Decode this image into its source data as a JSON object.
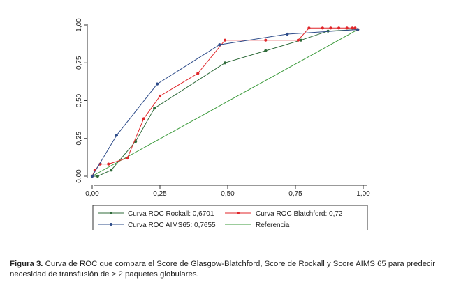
{
  "caption": {
    "label": "Figura 3.",
    "text": " Curva de ROC que compara el Score de Glasgow-Blatchford, Score de Rockall y Score AIMS 65 para predecir necesidad de transfusión de > 2 paquetes globulares."
  },
  "chart_data": {
    "type": "line",
    "xlim": [
      0,
      1
    ],
    "ylim": [
      0,
      1
    ],
    "x_ticks": [
      "0,00",
      "0,25",
      "0,50",
      "0,75",
      "1,00"
    ],
    "y_ticks": [
      "0,00",
      "0,25",
      "0,50",
      "0,75",
      "1,00"
    ],
    "grid": false,
    "legend_position": "bottom",
    "series": [
      {
        "name": "Curva ROC Rockall: 0,6701",
        "color": "#2f6b3a",
        "points": [
          [
            0.0,
            0.0
          ],
          [
            0.02,
            0.0
          ],
          [
            0.07,
            0.04
          ],
          [
            0.16,
            0.23
          ],
          [
            0.23,
            0.45
          ],
          [
            0.49,
            0.75
          ],
          [
            0.64,
            0.83
          ],
          [
            0.77,
            0.9
          ],
          [
            0.87,
            0.96
          ],
          [
            0.98,
            0.97
          ]
        ]
      },
      {
        "name": "Curva ROC Blatchford: 0,72",
        "color": "#e0262a",
        "points": [
          [
            0.0,
            0.0
          ],
          [
            0.01,
            0.04
          ],
          [
            0.03,
            0.08
          ],
          [
            0.06,
            0.08
          ],
          [
            0.13,
            0.12
          ],
          [
            0.19,
            0.38
          ],
          [
            0.25,
            0.53
          ],
          [
            0.39,
            0.68
          ],
          [
            0.49,
            0.9
          ],
          [
            0.64,
            0.9
          ],
          [
            0.76,
            0.9
          ],
          [
            0.8,
            0.98
          ],
          [
            0.85,
            0.98
          ],
          [
            0.88,
            0.98
          ],
          [
            0.91,
            0.98
          ],
          [
            0.94,
            0.98
          ],
          [
            0.96,
            0.98
          ],
          [
            0.97,
            0.98
          ],
          [
            0.98,
            0.97
          ]
        ]
      },
      {
        "name": "Curva ROC AIMS65: 0,7655",
        "color": "#2e4c8a",
        "points": [
          [
            0.0,
            0.0
          ],
          [
            0.09,
            0.27
          ],
          [
            0.24,
            0.61
          ],
          [
            0.47,
            0.87
          ],
          [
            0.72,
            0.94
          ],
          [
            0.98,
            0.97
          ]
        ]
      },
      {
        "name": "Referencia",
        "color": "#3a9a3a",
        "points": [
          [
            0.0,
            0.0
          ],
          [
            0.98,
            0.97
          ]
        ]
      }
    ]
  }
}
